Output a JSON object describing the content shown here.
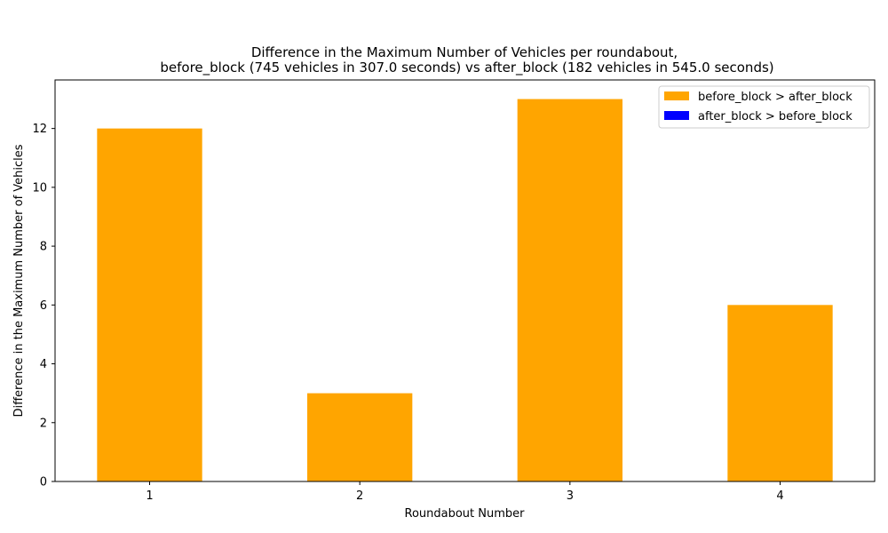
{
  "chart_data": {
    "type": "bar",
    "title_line1": "Difference in the Maximum Number of Vehicles per roundabout,",
    "title_line2": "before_block (745 vehicles in 307.0 seconds) vs after_block (182 vehicles in 545.0 seconds)",
    "xlabel": "Roundabout Number",
    "ylabel": "Difference in the Maximum Number of Vehicles",
    "categories": [
      "1",
      "2",
      "3",
      "4"
    ],
    "values": [
      12,
      3,
      13,
      6
    ],
    "ylim": [
      0,
      13.65
    ],
    "yticks": [
      0,
      2,
      4,
      6,
      8,
      10,
      12
    ],
    "grid": false,
    "legend_position": "top-right",
    "legend": [
      {
        "label": "before_block > after_block",
        "color": "#ffa500"
      },
      {
        "label": "after_block > before_block",
        "color": "#0000ff"
      }
    ],
    "bar_color": "#ffa500"
  }
}
